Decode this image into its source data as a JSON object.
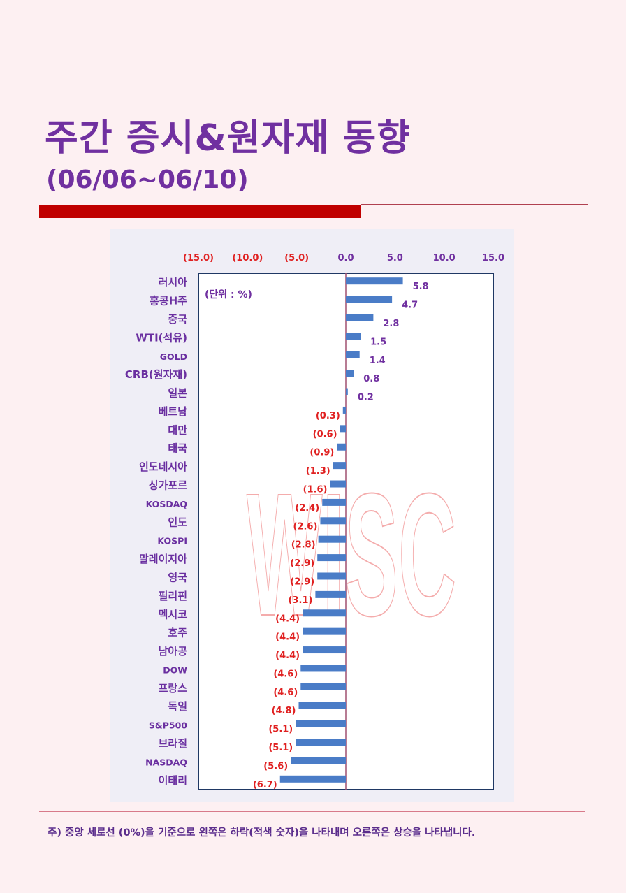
{
  "header": {
    "title": "주간 증시&원자재 동향",
    "date_range": "(06/06~06/10)"
  },
  "chart_data": {
    "type": "bar",
    "orientation": "horizontal",
    "unit_label": "(단위 : %)",
    "watermark": "WISC",
    "xlim": [
      -15,
      15
    ],
    "ticks": [
      -15,
      -10,
      -5,
      0,
      5,
      10,
      15
    ],
    "tick_labels": [
      "(15.0)",
      "(10.0)",
      "(5.0)",
      "0.0",
      "5.0",
      "10.0",
      "15.0"
    ],
    "categories": [
      "러시아",
      "홍콩H주",
      "중국",
      "WTI(석유)",
      "GOLD",
      "CRB(원자재)",
      "일본",
      "베트남",
      "대만",
      "태국",
      "인도네시아",
      "싱가포르",
      "KOSDAQ",
      "인도",
      "KOSPI",
      "말레이지아",
      "영국",
      "필리핀",
      "멕시코",
      "호주",
      "남아공",
      "DOW",
      "프랑스",
      "독일",
      "S&P500",
      "브라질",
      "NASDAQ",
      "이태리"
    ],
    "values": [
      5.8,
      4.7,
      2.8,
      1.5,
      1.4,
      0.8,
      0.2,
      -0.3,
      -0.6,
      -0.9,
      -1.3,
      -1.6,
      -2.4,
      -2.6,
      -2.8,
      -2.9,
      -2.9,
      -3.1,
      -4.4,
      -4.4,
      -4.4,
      -4.6,
      -4.6,
      -4.8,
      -5.1,
      -5.1,
      -5.6,
      -6.7
    ],
    "value_labels": [
      "5.8",
      "4.7",
      "2.8",
      "1.5",
      "1.4",
      "0.8",
      "0.2",
      "(0.3)",
      "(0.6)",
      "(0.9)",
      "(1.3)",
      "(1.6)",
      "(2.4)",
      "(2.6)",
      "(2.8)",
      "(2.9)",
      "(2.9)",
      "(3.1)",
      "(4.4)",
      "(4.4)",
      "(4.4)",
      "(4.6)",
      "(4.6)",
      "(4.8)",
      "(5.1)",
      "(5.1)",
      "(5.6)",
      "(6.7)"
    ],
    "colors": {
      "bar": "#4a7cc7",
      "positive_text": "#7030a0",
      "negative_text": "#e02020",
      "category_text": "#6a2fa0",
      "axis": "#1f3864",
      "zero_line": "#a05070",
      "watermark": "#f08a8a"
    }
  },
  "footnote": "주) 중앙 세로선 (0%)을 기준으로 왼쪽은 하락(적색 숫자)을 나타내며 오른쪽은 상승을 나타냅니다."
}
